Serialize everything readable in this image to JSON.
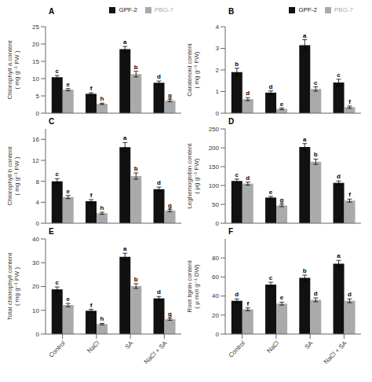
{
  "chart_data": [
    {
      "type": "bar",
      "title": "A",
      "ylabel": "Chlorophyll a content\n( mg g⁻¹ FW )",
      "categories": [
        "Control",
        "NaCl",
        "SA",
        "NaCl + SA"
      ],
      "series": [
        {
          "name": "GPF-2",
          "color": "#111111",
          "values": [
            10.4,
            5.6,
            18.5,
            8.8
          ],
          "errors": [
            0.5,
            0.3,
            0.8,
            0.5
          ],
          "letters": [
            "c",
            "f",
            "a",
            "d"
          ]
        },
        {
          "name": "PBG-7",
          "color": "#aaaaaa",
          "values": [
            6.8,
            2.7,
            11.3,
            3.6
          ],
          "errors": [
            0.3,
            0.2,
            0.8,
            0.3
          ],
          "letters": [
            "e",
            "h",
            "b",
            "g"
          ]
        }
      ],
      "ylim": [
        0,
        25
      ],
      "yticks": [
        0,
        5,
        10,
        15,
        20,
        25
      ],
      "grid": false,
      "legend": "upper right",
      "tick_labels": "y"
    },
    {
      "type": "bar",
      "title": "B",
      "ylabel": "Caratenoid content\n( mg g⁻¹ FW)",
      "categories": [
        "Control",
        "NaCl",
        "SA",
        "NaCl + SA"
      ],
      "series": [
        {
          "name": "GPF-2",
          "color": "#111111",
          "values": [
            1.9,
            0.95,
            3.15,
            1.42
          ],
          "errors": [
            0.18,
            0.08,
            0.25,
            0.15
          ],
          "letters": [
            "b",
            "d",
            "a",
            "c"
          ]
        },
        {
          "name": "PBG-7",
          "color": "#aaaaaa",
          "values": [
            0.65,
            0.2,
            1.12,
            0.28
          ],
          "errors": [
            0.07,
            0.04,
            0.1,
            0.05
          ],
          "letters": [
            "d",
            "e",
            "c",
            "f"
          ]
        }
      ],
      "ylim": [
        0,
        4
      ],
      "yticks": [
        0,
        1,
        2,
        3,
        4
      ],
      "grid": false,
      "legend": "upper right",
      "tick_labels": "y"
    },
    {
      "type": "bar",
      "title": "C",
      "ylabel": "Chlorophyll b content\n( mg g⁻¹ FW )",
      "categories": [
        "Control",
        "NaCl",
        "SA",
        "NaCl + SA"
      ],
      "series": [
        {
          "name": "GPF-2",
          "color": "#111111",
          "values": [
            8.0,
            4.2,
            14.5,
            6.5
          ],
          "errors": [
            0.5,
            0.3,
            0.9,
            0.4
          ],
          "letters": [
            "c",
            "f",
            "a",
            "d"
          ]
        },
        {
          "name": "PBG-7",
          "color": "#aaaaaa",
          "values": [
            5.0,
            1.9,
            9.0,
            2.4
          ],
          "errors": [
            0.3,
            0.2,
            0.6,
            0.2
          ],
          "letters": [
            "e",
            "h",
            "b",
            "g"
          ]
        }
      ],
      "ylim": [
        0,
        18
      ],
      "yticks": [
        0,
        4,
        8,
        12,
        16
      ],
      "grid": false,
      "tick_labels": "y"
    },
    {
      "type": "bar",
      "title": "D",
      "ylabel": "Leghemoglobin content\n( μg g⁻¹ FW)",
      "categories": [
        "Control",
        "NaCl",
        "SA",
        "NaCl + SA"
      ],
      "series": [
        {
          "name": "GPF-2",
          "color": "#111111",
          "values": [
            112,
            68,
            202,
            107
          ],
          "errors": [
            5,
            3,
            9,
            5
          ],
          "letters": [
            "c",
            "e",
            "a",
            "d"
          ]
        },
        {
          "name": "PBG-7",
          "color": "#aaaaaa",
          "values": [
            105,
            47,
            163,
            60
          ],
          "errors": [
            4,
            3,
            7,
            4
          ],
          "letters": [
            "d",
            "g",
            "b",
            "f"
          ]
        }
      ],
      "ylim": [
        0,
        250
      ],
      "yticks": [
        0,
        50,
        100,
        150,
        200,
        250
      ],
      "grid": false,
      "tick_labels": "y"
    },
    {
      "type": "bar",
      "title": "E",
      "ylabel": "Total chlorophyll content\n( mg g⁻¹ FW )",
      "categories": [
        "Control",
        "NaCl",
        "SA",
        "NaCl + SA"
      ],
      "series": [
        {
          "name": "GPF-2",
          "color": "#111111",
          "values": [
            18.8,
            9.8,
            32.5,
            15.0
          ],
          "errors": [
            1.0,
            0.6,
            1.5,
            0.8
          ],
          "letters": [
            "c",
            "f",
            "a",
            "d"
          ]
        },
        {
          "name": "PBG-7",
          "color": "#aaaaaa",
          "values": [
            12.2,
            4.2,
            20.2,
            6.2
          ],
          "errors": [
            0.7,
            0.3,
            1.0,
            0.4
          ],
          "letters": [
            "e",
            "h",
            "b",
            "g"
          ]
        }
      ],
      "ylim": [
        0,
        40
      ],
      "yticks": [
        0,
        10,
        20,
        30,
        40
      ],
      "grid": false
    },
    {
      "type": "bar",
      "title": "F",
      "ylabel": "Root lignin content\n( μ mol g⁻¹ DW)",
      "categories": [
        "Control",
        "NaCl",
        "SA",
        "NaCl + SA"
      ],
      "series": [
        {
          "name": "GPF-2",
          "color": "#111111",
          "values": [
            35,
            52,
            59,
            74
          ],
          "errors": [
            2.0,
            2.5,
            3.0,
            3.5
          ],
          "letters": [
            "d",
            "c",
            "b",
            "a"
          ]
        },
        {
          "name": "PBG-7",
          "color": "#aaaaaa",
          "values": [
            26,
            32,
            36,
            35
          ],
          "errors": [
            1.5,
            1.5,
            2.0,
            2.0
          ],
          "letters": [
            "f",
            "e",
            "d",
            "d"
          ]
        }
      ],
      "ylim": [
        0,
        100
      ],
      "yticks": [
        0,
        20,
        40,
        60,
        80
      ],
      "grid": false
    }
  ]
}
